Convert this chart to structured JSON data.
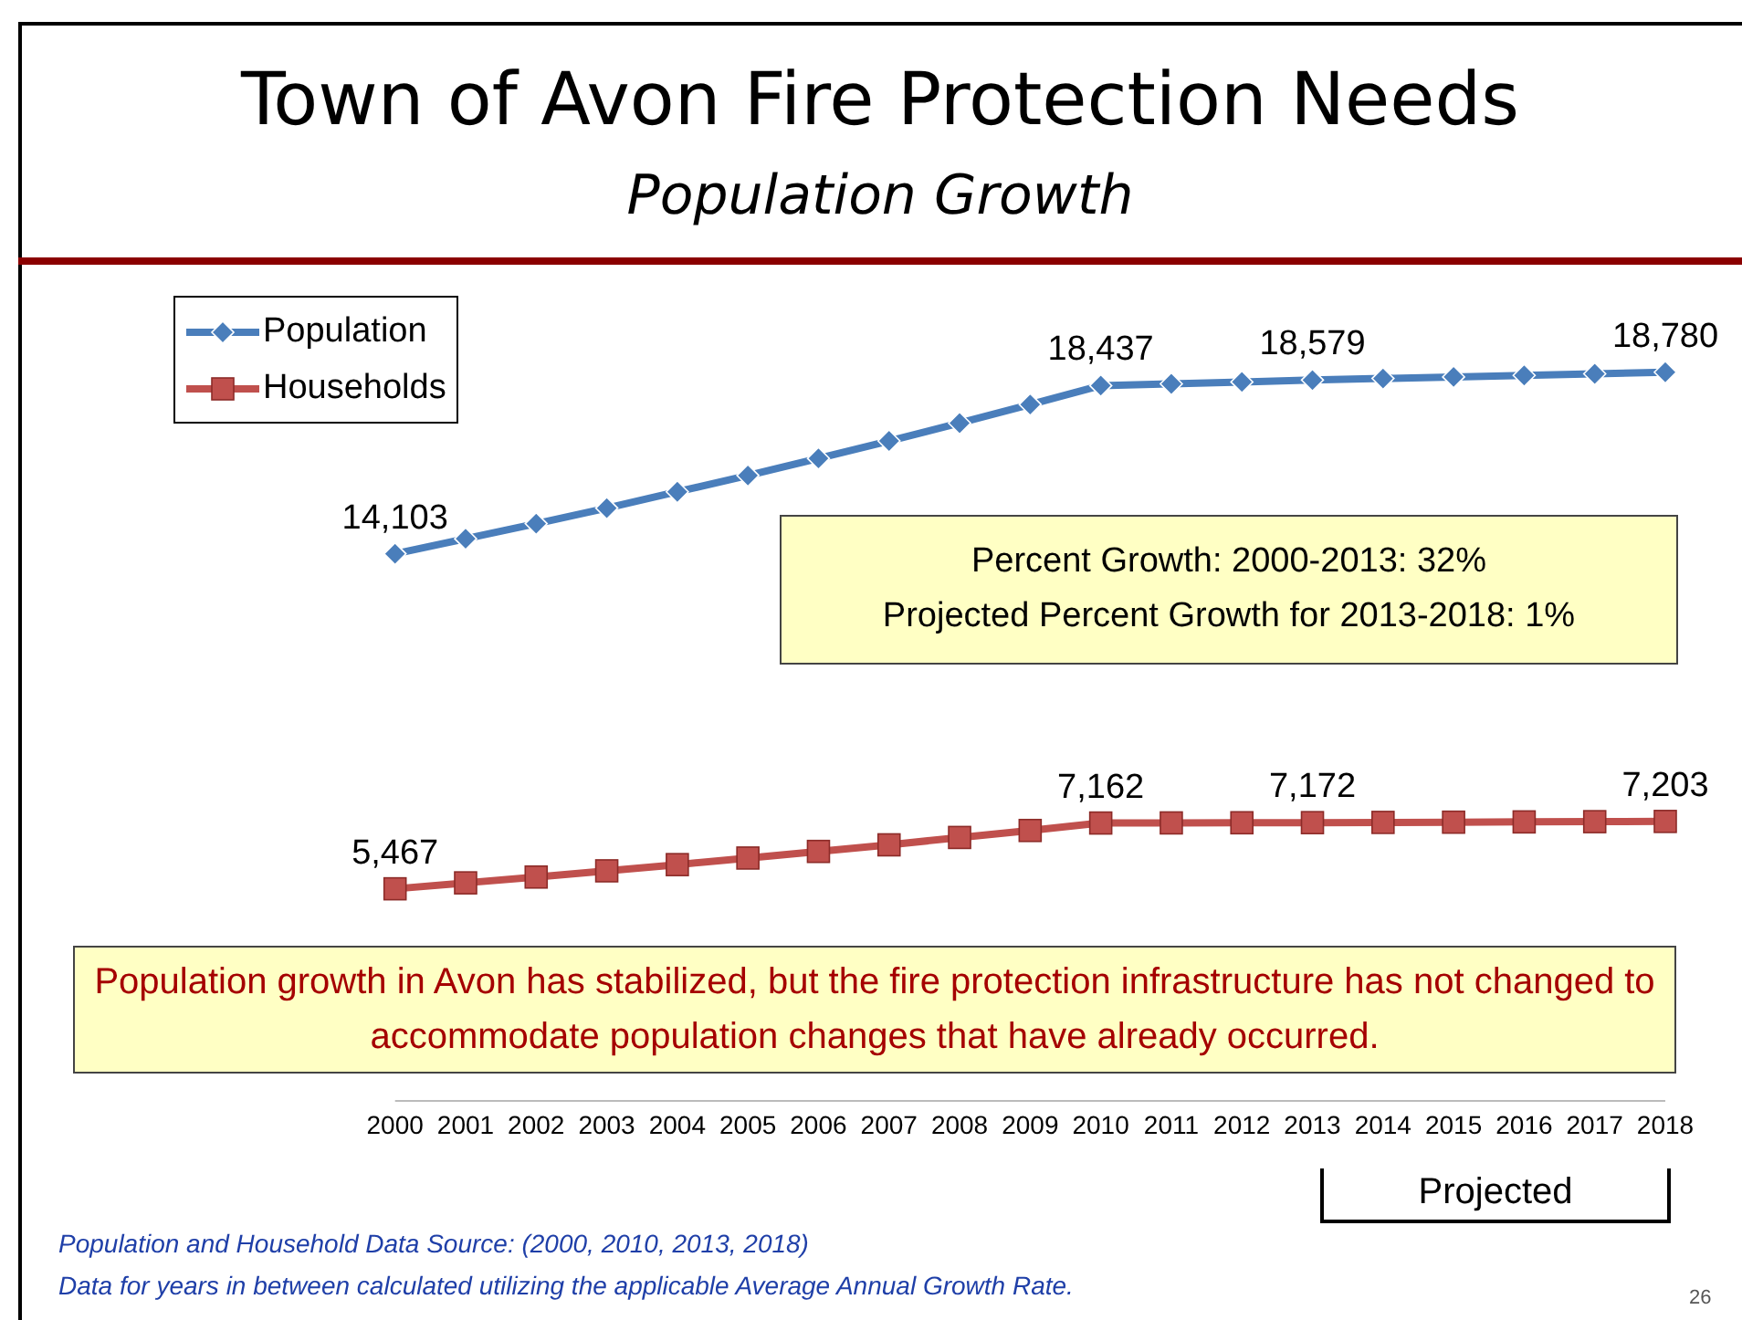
{
  "chart_data": {
    "type": "line",
    "title": "Town of Avon Fire Protection Needs",
    "subtitle": "Population Growth",
    "categories": [
      "2000",
      "2001",
      "2002",
      "2003",
      "2004",
      "2005",
      "2006",
      "2007",
      "2008",
      "2009",
      "2010",
      "2011",
      "2012",
      "2013",
      "2014",
      "2015",
      "2016",
      "2017",
      "2018"
    ],
    "series": [
      {
        "name": "Population",
        "color": "#4a7ebb",
        "marker": "diamond",
        "values": [
          14103,
          14490,
          14880,
          15280,
          15700,
          16120,
          16560,
          17010,
          17470,
          17950,
          18437,
          18480,
          18530,
          18579,
          18620,
          18660,
          18700,
          18740,
          18780
        ],
        "value_labels": [
          "14,103",
          null,
          null,
          null,
          null,
          null,
          null,
          null,
          null,
          null,
          "18,437",
          null,
          null,
          "18,579",
          null,
          null,
          null,
          null,
          "18,780"
        ]
      },
      {
        "name": "Households",
        "color": "#c0504d",
        "marker": "square",
        "values": [
          5467,
          5620,
          5770,
          5930,
          6090,
          6260,
          6430,
          6600,
          6790,
          6970,
          7162,
          7165,
          7169,
          7172,
          7178,
          7184,
          7191,
          7197,
          7203
        ],
        "value_labels": [
          "5,467",
          null,
          null,
          null,
          null,
          null,
          null,
          null,
          null,
          null,
          "7,162",
          null,
          null,
          "7,172",
          null,
          null,
          null,
          null,
          "7,203"
        ]
      }
    ],
    "legend": "top left",
    "annotations": [
      "Percent Growth:  2000-2013:  32%",
      "Projected  Percent Growth for 2013-2018:  1%",
      "Population growth in Avon has stabilized, but the fire protection infrastructure has not changed to accommodate population changes that have already occurred.",
      "Projected",
      "Population and Household Data Source:  (2000, 2010, 2013, 2018)",
      "Data for years in between calculated utilizing the applicable Average Annual Growth Rate.",
      "26"
    ]
  }
}
